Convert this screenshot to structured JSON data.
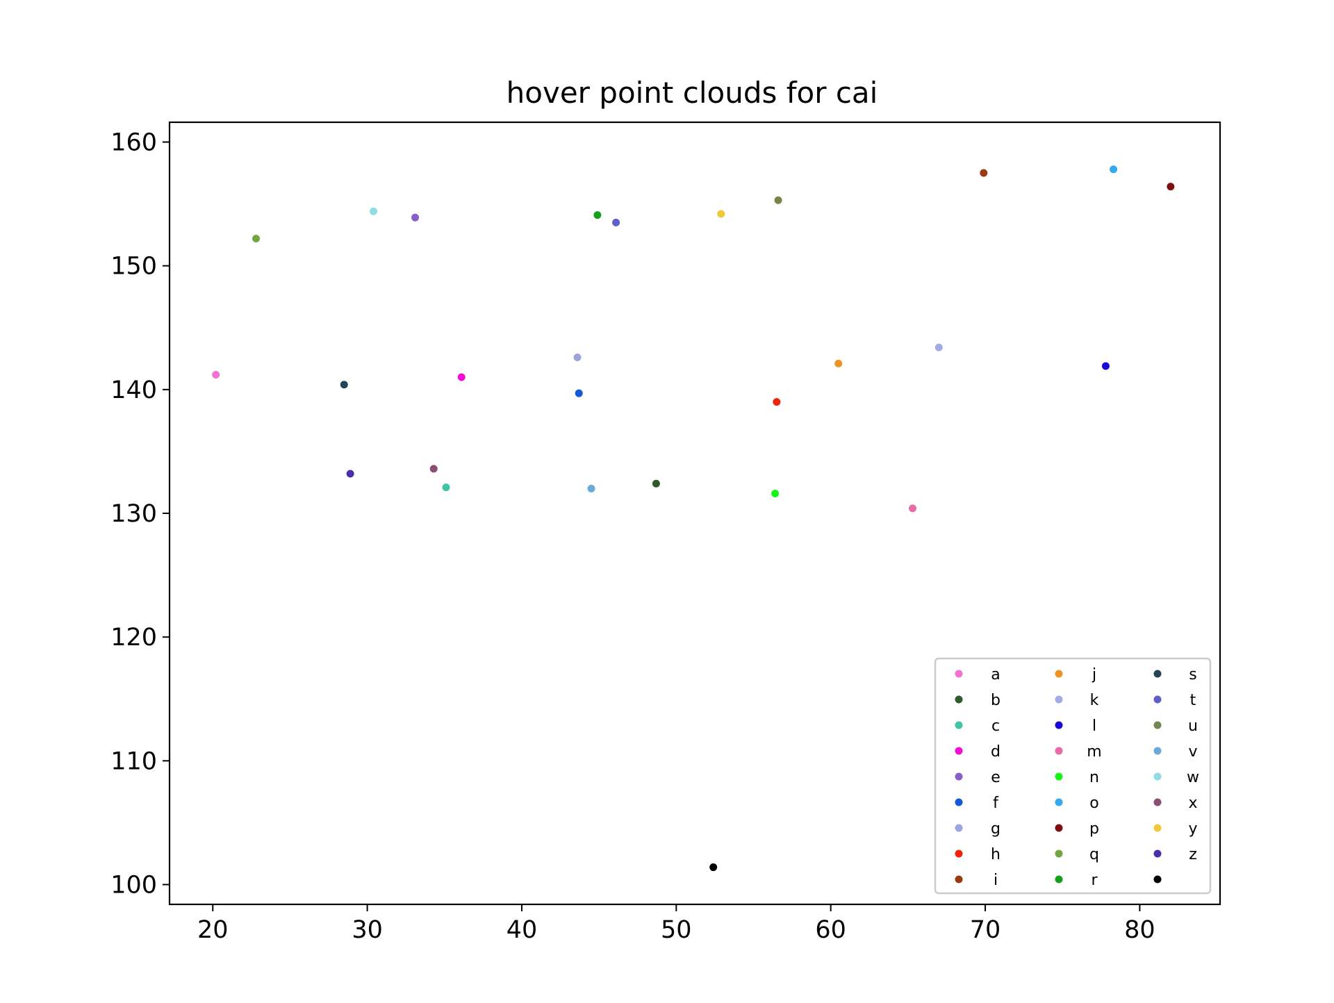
{
  "chart_data": {
    "type": "scatter",
    "title": "hover point clouds for cai",
    "xlabel": "",
    "ylabel": "",
    "xlim": [
      17.2,
      85.2
    ],
    "ylim": [
      98.4,
      161.6
    ],
    "xticks": [
      20,
      30,
      40,
      50,
      60,
      70,
      80
    ],
    "yticks": [
      100,
      110,
      120,
      130,
      140,
      150,
      160
    ],
    "grid": false,
    "legend_position": "lower right",
    "legend_columns": 3,
    "series": [
      {
        "name": "a",
        "color": "#f472d0",
        "points": [
          [
            20.2,
            141.2
          ]
        ]
      },
      {
        "name": "b",
        "color": "#2f5a2a",
        "points": [
          [
            48.7,
            132.4
          ]
        ]
      },
      {
        "name": "c",
        "color": "#3fc4a5",
        "points": [
          [
            35.1,
            132.1
          ]
        ]
      },
      {
        "name": "d",
        "color": "#f20fd4",
        "points": [
          [
            36.1,
            141.0
          ]
        ]
      },
      {
        "name": "e",
        "color": "#8660c8",
        "points": [
          [
            33.1,
            153.9
          ]
        ]
      },
      {
        "name": "f",
        "color": "#1658d8",
        "points": [
          [
            43.7,
            139.7
          ]
        ]
      },
      {
        "name": "g",
        "color": "#9aa6dc",
        "points": [
          [
            43.6,
            142.6
          ]
        ]
      },
      {
        "name": "h",
        "color": "#f1220c",
        "points": [
          [
            56.5,
            139.0
          ]
        ]
      },
      {
        "name": "i",
        "color": "#9a3a0f",
        "points": [
          [
            69.9,
            157.5
          ]
        ]
      },
      {
        "name": "j",
        "color": "#ec9326",
        "points": [
          [
            60.5,
            142.1
          ]
        ]
      },
      {
        "name": "k",
        "color": "#a1abe8",
        "points": [
          [
            67.0,
            143.4
          ]
        ]
      },
      {
        "name": "l",
        "color": "#1a0ad0",
        "points": [
          [
            77.8,
            141.9
          ]
        ]
      },
      {
        "name": "m",
        "color": "#e96aa6",
        "points": [
          [
            65.3,
            130.4
          ]
        ]
      },
      {
        "name": "n",
        "color": "#15f516",
        "points": [
          [
            56.4,
            131.6
          ]
        ]
      },
      {
        "name": "o",
        "color": "#35a8ee",
        "points": [
          [
            78.3,
            157.8
          ]
        ]
      },
      {
        "name": "p",
        "color": "#800f14",
        "points": [
          [
            82.0,
            156.4
          ]
        ]
      },
      {
        "name": "q",
        "color": "#74a543",
        "points": [
          [
            22.8,
            152.2
          ]
        ]
      },
      {
        "name": "r",
        "color": "#15a019",
        "points": [
          [
            44.9,
            154.1
          ]
        ]
      },
      {
        "name": "s",
        "color": "#244556",
        "points": [
          [
            28.5,
            140.4
          ]
        ]
      },
      {
        "name": "t",
        "color": "#5f5fca",
        "points": [
          [
            46.1,
            153.5
          ]
        ]
      },
      {
        "name": "u",
        "color": "#728750",
        "points": [
          [
            56.6,
            155.3
          ]
        ]
      },
      {
        "name": "v",
        "color": "#6aaad8",
        "points": [
          [
            44.5,
            132.0
          ]
        ]
      },
      {
        "name": "w",
        "color": "#8fdde0",
        "points": [
          [
            30.4,
            154.4
          ]
        ]
      },
      {
        "name": "x",
        "color": "#8a4d74",
        "points": [
          [
            34.3,
            133.6
          ]
        ]
      },
      {
        "name": "y",
        "color": "#efc93a",
        "points": [
          [
            52.9,
            154.2
          ]
        ]
      },
      {
        "name": "z",
        "color": "#4b2fa7",
        "points": [
          [
            28.9,
            133.2
          ]
        ]
      },
      {
        "name": "",
        "color": "#000000",
        "points": [
          [
            52.4,
            101.4
          ]
        ]
      }
    ]
  }
}
